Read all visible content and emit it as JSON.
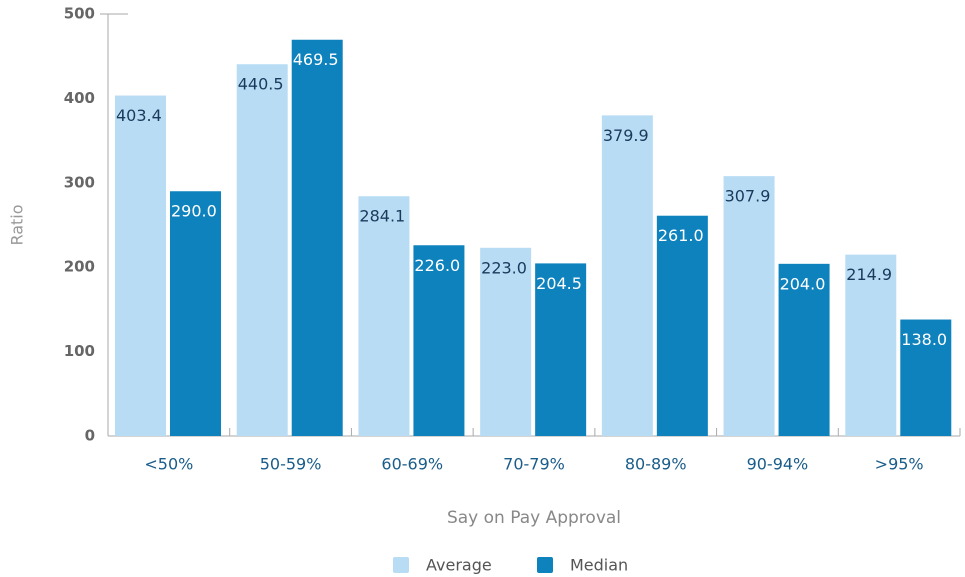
{
  "chart_data": {
    "type": "bar",
    "x_label": "Say on Pay Approval",
    "y_label": "Ratio",
    "categories": [
      "<50%",
      "50-59%",
      "60-69%",
      "70-79%",
      "80-89%",
      "90-94%",
      ">95%"
    ],
    "series": [
      {
        "name": "Average",
        "color": "#b9dcf5",
        "values": [
          403.4,
          440.5,
          284.1,
          223,
          379.9,
          307.9,
          214.9
        ],
        "value_labels": [
          "403.4",
          "440.5",
          "284.1",
          "223.0",
          "379.9",
          "307.9",
          "214.9"
        ]
      },
      {
        "name": "Median",
        "color": "#0e82bd",
        "values": [
          290,
          469.5,
          226,
          204.5,
          261,
          204,
          138
        ],
        "value_labels": [
          "290.0",
          "469.5",
          "226.0",
          "204.5",
          "261.0",
          "204.0",
          "138.0"
        ]
      }
    ],
    "ylim": [
      0,
      500
    ],
    "yticks": [
      0,
      100,
      200,
      300,
      400,
      500
    ],
    "legend": "bottom"
  }
}
